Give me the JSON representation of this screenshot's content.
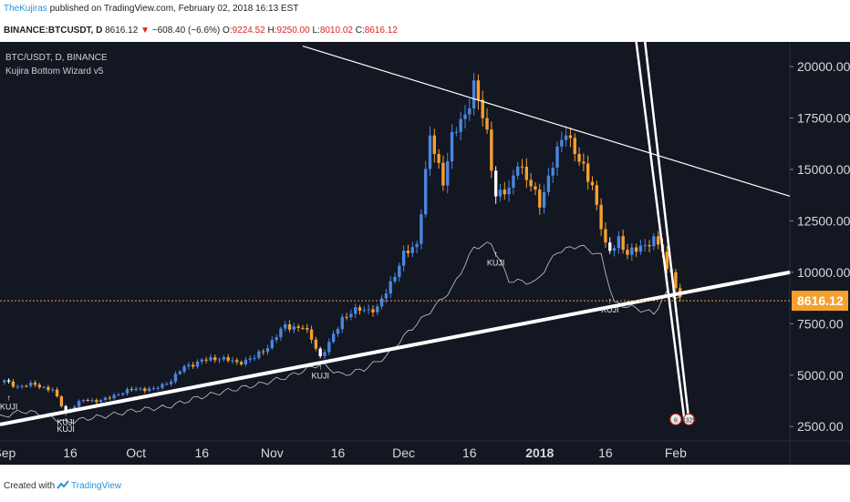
{
  "header": {
    "author": "TheKujiras",
    "published": "published on TradingView.com, February 02, 2018 16:13 EST",
    "symbol": "BINANCE:BTCUSDT, D",
    "last": "8616.12",
    "change_arrow": "▼",
    "change": "−608.40 (−6.6%)",
    "o_label": "O:",
    "o": "9224.52",
    "h_label": "H:",
    "h": "9250.00",
    "l_label": "L:",
    "l": "8010.02",
    "c_label": "C:",
    "c": "8616.12"
  },
  "legend": {
    "line1": "BTC/USDT, D, BINANCE",
    "line2": "Kujira Bottom Wizard v5"
  },
  "footer": {
    "created": "Created with",
    "brand": "TradingView"
  },
  "colors": {
    "background": "#131722",
    "up_candle": "#4a86e0",
    "down_candle": "#f5a030",
    "signal_candle": "#ffffff",
    "price_line": "#f5a030",
    "indicator_line": "#c8c8c8",
    "trend_line": "#ffffff",
    "axis_text": "#d8d8d8"
  },
  "chart_data": {
    "type": "candlestick",
    "title": "BTC/USDT, D, BINANCE",
    "ylim": [
      1800,
      21200
    ],
    "y_ticks": [
      20000,
      17500,
      15000,
      12500,
      10000,
      7500,
      5000,
      2500
    ],
    "y_tick_labels": [
      "20000.00",
      "17500.00",
      "15000.00",
      "12500.00",
      "10000.00",
      "7500.00",
      "5000.00",
      "2500.00"
    ],
    "x_start": "2017-08-31",
    "x_end": "2018-02-27",
    "x_tick_dates": [
      "2017-09-01",
      "2017-09-16",
      "2017-10-01",
      "2017-10-16",
      "2017-11-01",
      "2017-11-16",
      "2017-12-01",
      "2017-12-16",
      "2018-01-01",
      "2018-01-16",
      "2018-02-01"
    ],
    "x_tick_labels": [
      "Sep",
      "16",
      "Oct",
      "16",
      "Nov",
      "16",
      "Dec",
      "16",
      "2018",
      "16",
      "Feb"
    ],
    "last_price": 8616.12,
    "last_price_label": "8616.12",
    "close_anchors": [
      [
        "2017-09-01",
        4700
      ],
      [
        "2017-09-04",
        4450
      ],
      [
        "2017-09-08",
        4550
      ],
      [
        "2017-09-12",
        4250
      ],
      [
        "2017-09-15",
        3200
      ],
      [
        "2017-09-19",
        3800
      ],
      [
        "2017-09-23",
        3750
      ],
      [
        "2017-09-27",
        4100
      ],
      [
        "2017-10-01",
        4350
      ],
      [
        "2017-10-05",
        4300
      ],
      [
        "2017-10-09",
        4750
      ],
      [
        "2017-10-12",
        5400
      ],
      [
        "2017-10-16",
        5700
      ],
      [
        "2017-10-20",
        5850
      ],
      [
        "2017-10-24",
        5600
      ],
      [
        "2017-10-28",
        5850
      ],
      [
        "2017-10-31",
        6400
      ],
      [
        "2017-11-04",
        7400
      ],
      [
        "2017-11-08",
        7300
      ],
      [
        "2017-11-10",
        6800
      ],
      [
        "2017-11-12",
        5900
      ],
      [
        "2017-11-14",
        6500
      ],
      [
        "2017-11-17",
        7800
      ],
      [
        "2017-11-21",
        8200
      ],
      [
        "2017-11-25",
        8200
      ],
      [
        "2017-11-28",
        9500
      ],
      [
        "2017-12-01",
        10800
      ],
      [
        "2017-12-04",
        11400
      ],
      [
        "2017-12-07",
        16500
      ],
      [
        "2017-12-10",
        14500
      ],
      [
        "2017-12-12",
        16500
      ],
      [
        "2017-12-15",
        17700
      ],
      [
        "2017-12-17",
        19100
      ],
      [
        "2017-12-20",
        16700
      ],
      [
        "2017-12-22",
        13800
      ],
      [
        "2017-12-25",
        13900
      ],
      [
        "2017-12-27",
        15500
      ],
      [
        "2017-12-29",
        14500
      ],
      [
        "2018-01-01",
        13400
      ],
      [
        "2018-01-04",
        15200
      ],
      [
        "2018-01-07",
        17000
      ],
      [
        "2018-01-10",
        15300
      ],
      [
        "2018-01-13",
        14300
      ],
      [
        "2018-01-16",
        11200
      ],
      [
        "2018-01-17",
        11000
      ],
      [
        "2018-01-19",
        11700
      ],
      [
        "2018-01-21",
        10800
      ],
      [
        "2018-01-24",
        11300
      ],
      [
        "2018-01-27",
        11500
      ],
      [
        "2018-01-29",
        11100
      ],
      [
        "2018-01-30",
        10100
      ],
      [
        "2018-01-31",
        10200
      ],
      [
        "2018-02-01",
        9200
      ],
      [
        "2018-02-02",
        8616
      ]
    ],
    "indicator_anchors": [
      [
        "2017-08-31",
        2950
      ],
      [
        "2017-09-05",
        3250
      ],
      [
        "2017-09-10",
        3100
      ],
      [
        "2017-09-15",
        2700
      ],
      [
        "2017-09-20",
        2900
      ],
      [
        "2017-09-25",
        3050
      ],
      [
        "2017-10-01",
        3300
      ],
      [
        "2017-10-08",
        3450
      ],
      [
        "2017-10-15",
        3900
      ],
      [
        "2017-10-22",
        4250
      ],
      [
        "2017-10-29",
        4550
      ],
      [
        "2017-11-05",
        4950
      ],
      [
        "2017-11-12",
        5550
      ],
      [
        "2017-11-17",
        5000
      ],
      [
        "2017-11-22",
        5300
      ],
      [
        "2017-11-27",
        5900
      ],
      [
        "2017-12-02",
        7100
      ],
      [
        "2017-12-07",
        8100
      ],
      [
        "2017-12-12",
        9200
      ],
      [
        "2017-12-17",
        11200
      ],
      [
        "2017-12-21",
        11400
      ],
      [
        "2017-12-25",
        9600
      ],
      [
        "2017-12-31",
        9500
      ],
      [
        "2018-01-05",
        11000
      ],
      [
        "2018-01-10",
        11300
      ],
      [
        "2018-01-15",
        10800
      ],
      [
        "2018-01-18",
        8500
      ],
      [
        "2018-01-22",
        8300
      ],
      [
        "2018-01-27",
        8000
      ],
      [
        "2018-01-30",
        9000
      ],
      [
        "2018-02-02",
        8700
      ]
    ],
    "signal_labels": [
      {
        "date": "2017-09-02",
        "price": 3600,
        "text": "KUJI"
      },
      {
        "date": "2017-09-15",
        "price": 2850,
        "text": "KUJI"
      },
      {
        "date": "2017-09-15",
        "price": 2500,
        "text": "KUJI"
      },
      {
        "date": "2017-11-12",
        "price": 5100,
        "text": "KUJI"
      },
      {
        "date": "2017-12-22",
        "price": 10600,
        "text": "KUJI"
      },
      {
        "date": "2018-01-17",
        "price": 8300,
        "text": "KUJI"
      }
    ],
    "trend_lines": [
      {
        "points": [
          [
            "2017-08-31",
            2600
          ],
          [
            "2018-02-27",
            10000
          ]
        ],
        "weight": "thick"
      },
      {
        "points": [
          [
            "2017-11-08",
            21000
          ],
          [
            "2018-02-27",
            13700
          ]
        ],
        "weight": "thin"
      },
      {
        "points": [
          [
            "2018-01-23",
            21200
          ],
          [
            "2018-02-03",
            2800
          ]
        ],
        "weight": "medium"
      },
      {
        "points": [
          [
            "2018-01-25",
            21200
          ],
          [
            "2018-02-04",
            2800
          ]
        ],
        "weight": "medium"
      }
    ],
    "events": [
      {
        "date": "2018-02-01",
        "price": 2850,
        "text": "6"
      },
      {
        "date": "2018-02-04",
        "price": 2850,
        "text": "4325"
      }
    ]
  }
}
